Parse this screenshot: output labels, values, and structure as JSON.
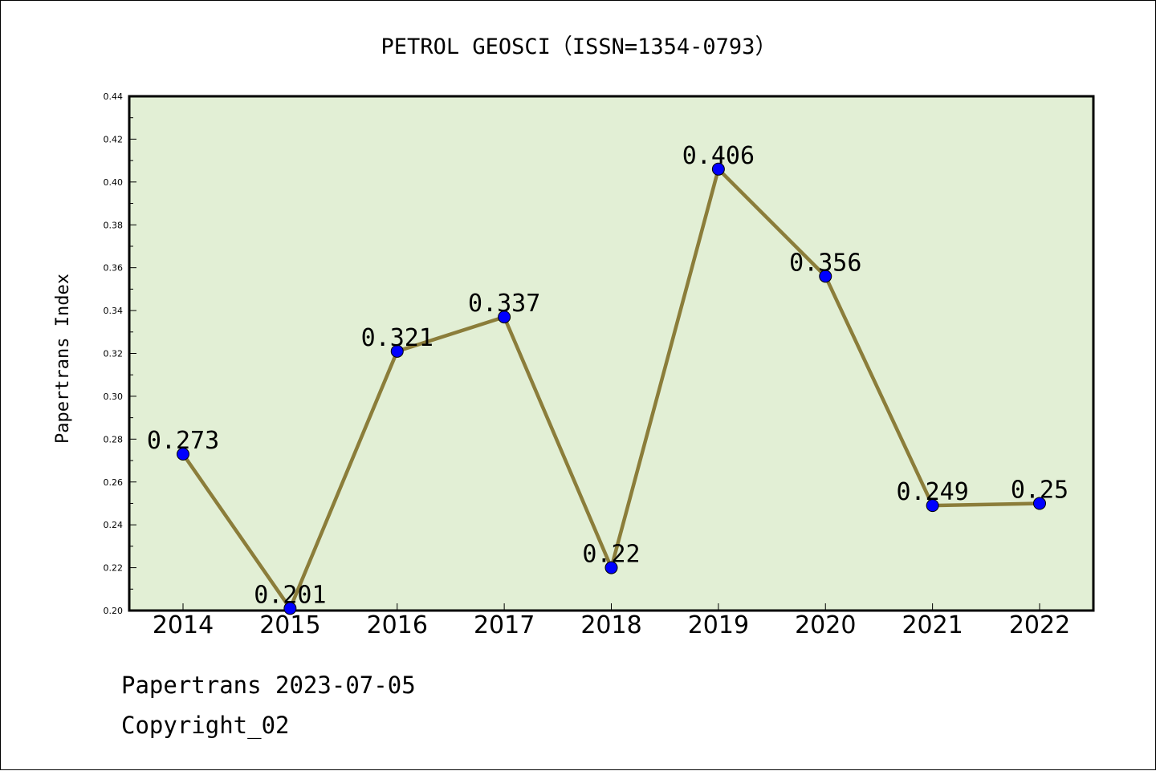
{
  "chart_data": {
    "type": "line",
    "title": "PETROL GEOSCI（ISSN=1354-0793）",
    "xlabel": "",
    "ylabel": "Papertrans Index",
    "categories": [
      "2014",
      "2015",
      "2016",
      "2017",
      "2018",
      "2019",
      "2020",
      "2021",
      "2022"
    ],
    "values": [
      0.273,
      0.201,
      0.321,
      0.337,
      0.22,
      0.406,
      0.356,
      0.249,
      0.25
    ],
    "data_labels": [
      "0.273",
      "0.201",
      "0.321",
      "0.337",
      "0.22",
      "0.406",
      "0.356",
      "0.249",
      "0.25"
    ],
    "ylim": [
      0.2,
      0.44
    ],
    "yticks": [
      "0.20",
      "0.22",
      "0.24",
      "0.26",
      "0.28",
      "0.30",
      "0.32",
      "0.34",
      "0.36",
      "0.38",
      "0.40",
      "0.42",
      "0.44"
    ],
    "grid": false,
    "colors": {
      "plot_background": "#e2efd5",
      "line": "#8b7d3a",
      "marker": "#0000ff"
    }
  },
  "footer": {
    "date_text": "Papertrans 2023-07-05",
    "copyright_text": "Copyright_02"
  }
}
